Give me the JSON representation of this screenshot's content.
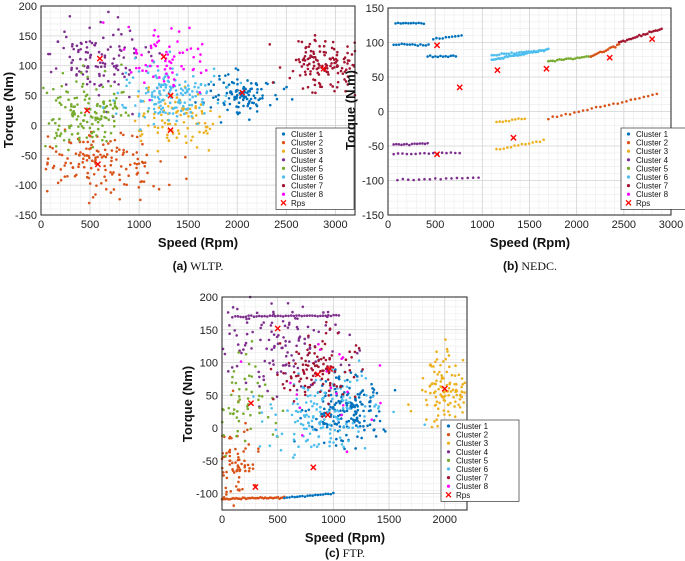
{
  "palette": {
    "Cluster 1": "#0072BD",
    "Cluster 2": "#D95319",
    "Cluster 3": "#EDB120",
    "Cluster 4": "#7E2F8E",
    "Cluster 5": "#77AC30",
    "Cluster 6": "#4DBEEE",
    "Cluster 7": "#A2142F",
    "Cluster 8": "#FF00FF",
    "Rps": "#FF0000"
  },
  "legend_entries": [
    "Cluster 1",
    "Cluster 2",
    "Cluster 3",
    "Cluster 4",
    "Cluster 5",
    "Cluster 6",
    "Cluster 7",
    "Cluster 8",
    "Rps"
  ],
  "chart_data": [
    {
      "id": "wltp",
      "type": "scatter",
      "caption_label": "(a)",
      "caption_text": "WLTP.",
      "xlabel": "Speed (Rpm)",
      "ylabel": "Torque (Nm)",
      "xlim": [
        0,
        3200
      ],
      "ylim": [
        -150,
        200
      ],
      "xticks": [
        0,
        500,
        1000,
        1500,
        2000,
        2500,
        3000
      ],
      "yticks": [
        -150,
        -100,
        -50,
        0,
        50,
        100,
        150,
        200
      ],
      "legend_position": "bottom-right",
      "clusters": [
        {
          "name": "Cluster 1",
          "center": [
            2050,
            55
          ],
          "spread": [
            180,
            18
          ],
          "n": 110
        },
        {
          "name": "Cluster 2",
          "center": [
            600,
            -65
          ],
          "spread": [
            320,
            28
          ],
          "n": 160
        },
        {
          "name": "Cluster 3",
          "center": [
            1350,
            5
          ],
          "spread": [
            220,
            25
          ],
          "n": 90
        },
        {
          "name": "Cluster 4",
          "center": [
            550,
            115
          ],
          "spread": [
            260,
            30
          ],
          "n": 120
        },
        {
          "name": "Cluster 5",
          "center": [
            450,
            25
          ],
          "spread": [
            200,
            30
          ],
          "n": 150
        },
        {
          "name": "Cluster 6",
          "center": [
            1300,
            50
          ],
          "spread": [
            250,
            25
          ],
          "n": 160
        },
        {
          "name": "Cluster 7",
          "center": [
            2900,
            100
          ],
          "spread": [
            200,
            25
          ],
          "n": 140
        },
        {
          "name": "Cluster 8",
          "center": [
            1250,
            115
          ],
          "spread": [
            220,
            25
          ],
          "n": 70
        }
      ],
      "rps": [
        [
          2050,
          55
        ],
        [
          580,
          -65
        ],
        [
          1320,
          -8
        ],
        [
          600,
          112
        ],
        [
          470,
          25
        ],
        [
          1320,
          50
        ],
        [
          2880,
          95
        ],
        [
          1250,
          115
        ]
      ]
    },
    {
      "id": "nedc",
      "type": "scatter",
      "caption_label": "(b)",
      "caption_text": "NEDC.",
      "xlabel": "Speed (Rpm)",
      "ylabel": "Torque (N.m)",
      "xlim": [
        0,
        3000
      ],
      "ylim": [
        -150,
        150
      ],
      "xticks": [
        0,
        500,
        1000,
        1500,
        2000,
        2500,
        3000
      ],
      "yticks": [
        -150,
        -100,
        -50,
        0,
        50,
        100,
        150
      ],
      "legend_position": "bottom-right",
      "segments": [
        {
          "name": "Cluster 1",
          "x0": 80,
          "y0": 128,
          "x1": 380,
          "y1": 128,
          "n": 12
        },
        {
          "name": "Cluster 1",
          "x0": 60,
          "y0": 97,
          "x1": 430,
          "y1": 97,
          "n": 14
        },
        {
          "name": "Cluster 1",
          "x0": 420,
          "y0": 80,
          "x1": 720,
          "y1": 80,
          "n": 12
        },
        {
          "name": "Cluster 1",
          "x0": 480,
          "y0": 105,
          "x1": 780,
          "y1": 110,
          "n": 10
        },
        {
          "name": "Cluster 2",
          "x0": 1700,
          "y0": -10,
          "x1": 2850,
          "y1": 25,
          "n": 26
        },
        {
          "name": "Cluster 3",
          "x0": 1150,
          "y0": -15,
          "x1": 1450,
          "y1": -10,
          "n": 10
        },
        {
          "name": "Cluster 3",
          "x0": 1150,
          "y0": -55,
          "x1": 1650,
          "y1": -42,
          "n": 14
        },
        {
          "name": "Cluster 4",
          "x0": 60,
          "y0": -48,
          "x1": 420,
          "y1": -46,
          "n": 14
        },
        {
          "name": "Cluster 4",
          "x0": 60,
          "y0": -62,
          "x1": 760,
          "y1": -60,
          "n": 16
        },
        {
          "name": "Cluster 4",
          "x0": 100,
          "y0": -100,
          "x1": 960,
          "y1": -96,
          "n": 16
        },
        {
          "name": "Cluster 5",
          "x0": 1700,
          "y0": 73,
          "x1": 2150,
          "y1": 80,
          "n": 20
        },
        {
          "name": "Cluster 6",
          "x0": 1100,
          "y0": 75,
          "x1": 1700,
          "y1": 90,
          "n": 40
        },
        {
          "name": "Cluster 6",
          "x0": 1100,
          "y0": 82,
          "x1": 1600,
          "y1": 88,
          "n": 20
        },
        {
          "name": "Cluster 7",
          "x0": 2450,
          "y0": 100,
          "x1": 2900,
          "y1": 120,
          "n": 22
        },
        {
          "name": "Cluster 2",
          "x0": 2150,
          "y0": 80,
          "x1": 2450,
          "y1": 97,
          "n": 16
        }
      ],
      "rps": [
        [
          520,
          96
        ],
        [
          760,
          35
        ],
        [
          520,
          -62
        ],
        [
          1160,
          60
        ],
        [
          1330,
          -38
        ],
        [
          1680,
          62
        ],
        [
          2350,
          78
        ],
        [
          2800,
          105
        ]
      ]
    },
    {
      "id": "ftp",
      "type": "scatter",
      "caption_label": "(c)",
      "caption_text": "FTP.",
      "xlabel": "Speed (Rpm)",
      "ylabel": "Torque (Nm)",
      "xlim": [
        0,
        2200
      ],
      "ylim": [
        -125,
        200
      ],
      "xticks": [
        0,
        500,
        1000,
        1500,
        2000
      ],
      "yticks": [
        -100,
        -50,
        0,
        50,
        100,
        150,
        200
      ],
      "legend_position": "bottom-right",
      "clusters": [
        {
          "name": "Cluster 1",
          "center": [
            1100,
            30
          ],
          "spread": [
            170,
            25
          ],
          "n": 180
        },
        {
          "name": "Cluster 2",
          "center": [
            120,
            -60
          ],
          "spread": [
            120,
            35
          ],
          "n": 90
        },
        {
          "name": "Cluster 3",
          "center": [
            2000,
            60
          ],
          "spread": [
            110,
            25
          ],
          "n": 120
        },
        {
          "name": "Cluster 4",
          "center": [
            500,
            130
          ],
          "spread": [
            300,
            35
          ],
          "n": 130
        },
        {
          "name": "Cluster 5",
          "center": [
            200,
            30
          ],
          "spread": [
            130,
            35
          ],
          "n": 60
        },
        {
          "name": "Cluster 6",
          "center": [
            900,
            20
          ],
          "spread": [
            260,
            25
          ],
          "n": 150
        },
        {
          "name": "Cluster 7",
          "center": [
            850,
            90
          ],
          "spread": [
            200,
            25
          ],
          "n": 110
        },
        {
          "name": "Cluster 8",
          "center": [
            1000,
            60
          ],
          "spread": [
            300,
            40
          ],
          "n": 20
        }
      ],
      "lines": [
        {
          "name": "Cluster 4",
          "x0": 120,
          "y0": 170,
          "x1": 1050,
          "y1": 172,
          "n": 40
        },
        {
          "name": "Cluster 2",
          "x0": 0,
          "y0": -108,
          "x1": 560,
          "y1": -106,
          "n": 40
        },
        {
          "name": "Cluster 1",
          "x0": 560,
          "y0": -106,
          "x1": 1000,
          "y1": -100,
          "n": 20
        }
      ],
      "rps": [
        [
          820,
          -60
        ],
        [
          950,
          20
        ],
        [
          2000,
          60
        ],
        [
          500,
          152
        ],
        [
          260,
          38
        ],
        [
          300,
          -90
        ],
        [
          860,
          82
        ],
        [
          970,
          90
        ]
      ]
    }
  ]
}
